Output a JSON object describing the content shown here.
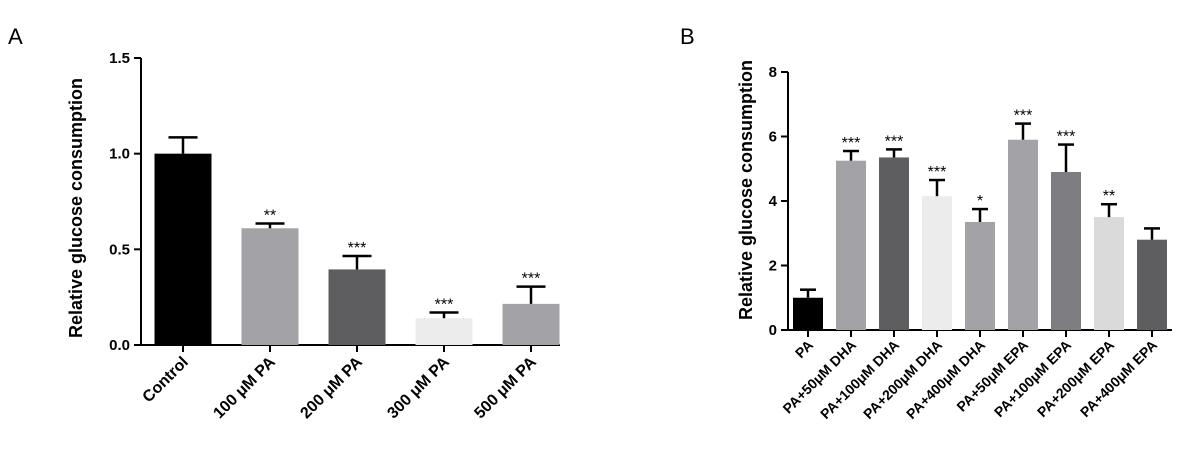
{
  "chart_data": [
    {
      "panel": "A",
      "type": "bar",
      "ylabel": "Relative glucose consumption",
      "ylim": [
        0,
        1.5
      ],
      "yticks": [
        0.0,
        0.5,
        1.0,
        1.5
      ],
      "ytick_labels": [
        "0.0",
        "0.5",
        "1.0",
        "1.5"
      ],
      "categories": [
        "Control",
        "100 μM PA",
        "200 μM PA",
        "300 μM PA",
        "500 μM PA"
      ],
      "values": [
        1.0,
        0.61,
        0.395,
        0.14,
        0.215
      ],
      "errors": [
        0.085,
        0.025,
        0.07,
        0.03,
        0.09
      ],
      "significance": [
        "",
        "**",
        "***",
        "***",
        "***"
      ],
      "colors": [
        "#000000",
        "#a3a3a7",
        "#5e5e60",
        "#ececec",
        "#a3a3a7"
      ]
    },
    {
      "panel": "B",
      "type": "bar",
      "ylabel": "Relative glucose consumption",
      "ylim": [
        0,
        8
      ],
      "yticks": [
        0,
        2,
        4,
        6,
        8
      ],
      "ytick_labels": [
        "0",
        "2",
        "4",
        "6",
        "8"
      ],
      "categories": [
        "PA",
        "PA+50μM DHA",
        "PA+100μM DHA",
        "PA+200μM DHA",
        "PA+400μM DHA",
        "PA+50μM EPA",
        "PA+100μM EPA",
        "PA+200μM EPA",
        "PA+400μM EPA"
      ],
      "values": [
        1.0,
        5.25,
        5.35,
        4.15,
        3.35,
        5.9,
        4.9,
        3.5,
        2.8
      ],
      "errors": [
        0.25,
        0.3,
        0.25,
        0.5,
        0.4,
        0.5,
        0.85,
        0.4,
        0.35
      ],
      "significance": [
        "",
        "***",
        "***",
        "***",
        "*",
        "***",
        "***",
        "**",
        ""
      ],
      "colors": [
        "#000000",
        "#a3a3a7",
        "#5e5e60",
        "#ececec",
        "#a3a3a7",
        "#a3a3a7",
        "#7e7e82",
        "#dadada",
        "#5e5e60"
      ]
    }
  ]
}
